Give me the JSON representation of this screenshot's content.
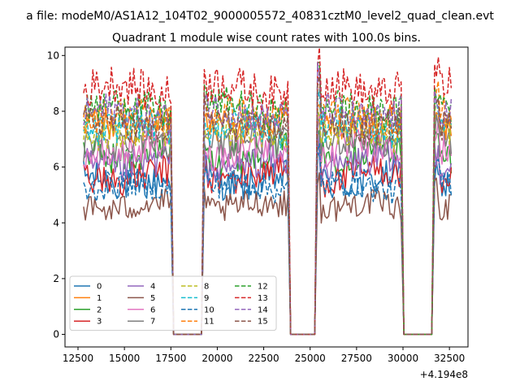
{
  "chart_data": {
    "type": "line",
    "suptitle": "a file: modeM0/AS1A12_104T02_9000005572_40831cztM0_level2_quad_clean.evt",
    "title": "Quadrant 1 module wise count rates with 100.0s bins.",
    "xlabel": "",
    "ylabel": "",
    "x_offset_label": "+4.194e8",
    "xlim": [
      11800,
      33500
    ],
    "ylim": [
      -0.45,
      10.3
    ],
    "xticks": [
      12500,
      15000,
      17500,
      20000,
      22500,
      25000,
      27500,
      30000,
      32500
    ],
    "xtick_labels": [
      "12500",
      "15000",
      "17500",
      "20000",
      "22500",
      "25000",
      "27500",
      "30000",
      "32500"
    ],
    "yticks": [
      0,
      2,
      4,
      6,
      8,
      10
    ],
    "ytick_labels": [
      "0",
      "2",
      "4",
      "6",
      "8",
      "10"
    ],
    "legend_position": "lower-left",
    "legend_columns": 4,
    "segments": [
      {
        "start": 12800,
        "end": 17500
      },
      {
        "start": 19300,
        "end": 23800
      },
      {
        "start": 25400,
        "end": 29900
      },
      {
        "start": 31700,
        "end": 32600
      }
    ],
    "gaps": [
      [
        17500,
        19300
      ],
      [
        23800,
        25400
      ],
      [
        29900,
        31700
      ]
    ],
    "bin_seconds": 100,
    "series": [
      {
        "name": "0",
        "color": "#1f77b4",
        "dash": "solid",
        "mean": 5.5,
        "amplitude": 0.6
      },
      {
        "name": "1",
        "color": "#ff7f0e",
        "dash": "solid",
        "mean": 7.6,
        "amplitude": 0.6
      },
      {
        "name": "2",
        "color": "#2ca02c",
        "dash": "solid",
        "mean": 6.5,
        "amplitude": 0.6
      },
      {
        "name": "3",
        "color": "#d62728",
        "dash": "solid",
        "mean": 5.7,
        "amplitude": 0.6
      },
      {
        "name": "4",
        "color": "#9467bd",
        "dash": "solid",
        "mean": 6.1,
        "amplitude": 0.6
      },
      {
        "name": "5",
        "color": "#8c564b",
        "dash": "solid",
        "mean": 4.6,
        "amplitude": 0.5
      },
      {
        "name": "6",
        "color": "#e377c2",
        "dash": "solid",
        "mean": 6.6,
        "amplitude": 0.6
      },
      {
        "name": "7",
        "color": "#7f7f7f",
        "dash": "solid",
        "mean": 6.9,
        "amplitude": 0.6
      },
      {
        "name": "8",
        "color": "#bcbd22",
        "dash": "dashed",
        "mean": 7.2,
        "amplitude": 0.6
      },
      {
        "name": "9",
        "color": "#17becf",
        "dash": "dashed",
        "mean": 7.4,
        "amplitude": 0.6
      },
      {
        "name": "10",
        "color": "#1f77b4",
        "dash": "dashed",
        "mean": 5.3,
        "amplitude": 0.5
      },
      {
        "name": "11",
        "color": "#ff7f0e",
        "dash": "dashed",
        "mean": 7.8,
        "amplitude": 0.6
      },
      {
        "name": "12",
        "color": "#2ca02c",
        "dash": "dashed",
        "mean": 8.1,
        "amplitude": 0.6
      },
      {
        "name": "13",
        "color": "#d62728",
        "dash": "dashed",
        "mean": 8.8,
        "amplitude": 0.7
      },
      {
        "name": "14",
        "color": "#9467bd",
        "dash": "dashed",
        "mean": 7.9,
        "amplitude": 0.6
      },
      {
        "name": "15",
        "color": "#8c564b",
        "dash": "dashed",
        "mean": 7.5,
        "amplitude": 0.6
      }
    ]
  }
}
